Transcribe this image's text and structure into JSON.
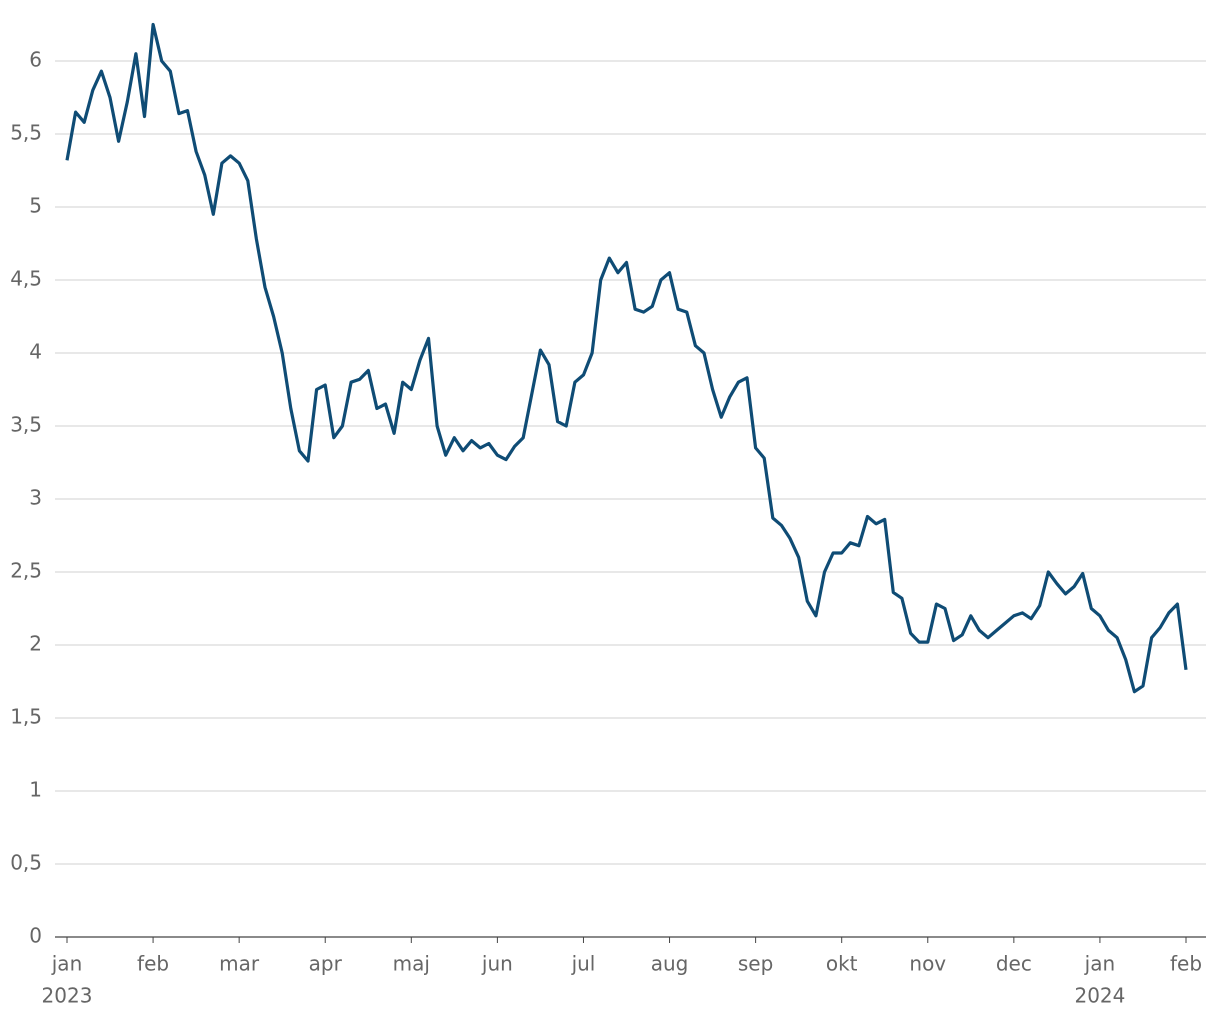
{
  "chart_data": {
    "type": "line",
    "categories": [
      "jan",
      null,
      null,
      null,
      null,
      null,
      null,
      null,
      null,
      null,
      "feb",
      null,
      null,
      null,
      null,
      null,
      null,
      null,
      null,
      null,
      "mar",
      null,
      null,
      null,
      null,
      null,
      null,
      null,
      null,
      null,
      "apr",
      null,
      null,
      null,
      null,
      null,
      null,
      null,
      null,
      null,
      "maj",
      null,
      null,
      null,
      null,
      null,
      null,
      null,
      null,
      null,
      "jun",
      null,
      null,
      null,
      null,
      null,
      null,
      null,
      null,
      null,
      "jul",
      null,
      null,
      null,
      null,
      null,
      null,
      null,
      null,
      null,
      "aug",
      null,
      null,
      null,
      null,
      null,
      null,
      null,
      null,
      null,
      "sep",
      null,
      null,
      null,
      null,
      null,
      null,
      null,
      null,
      null,
      "okt",
      null,
      null,
      null,
      null,
      null,
      null,
      null,
      null,
      null,
      "nov",
      null,
      null,
      null,
      null,
      null,
      null,
      null,
      null,
      null,
      "dec",
      null,
      null,
      null,
      null,
      null,
      null,
      null,
      null,
      null,
      "jan",
      null,
      null,
      null,
      null,
      null,
      null,
      null,
      null,
      null,
      "feb"
    ],
    "years": [
      "2023",
      "2024"
    ],
    "series": [
      {
        "color": "#0f4c75",
        "values": [
          5.32,
          5.65,
          5.58,
          5.8,
          5.93,
          5.75,
          5.45,
          5.72,
          6.05,
          5.62,
          6.25,
          6.0,
          5.93,
          5.64,
          5.66,
          5.38,
          5.22,
          4.95,
          5.3,
          5.35,
          5.3,
          5.18,
          4.78,
          4.45,
          4.25,
          4.0,
          3.62,
          3.33,
          3.26,
          3.75,
          3.78,
          3.42,
          3.5,
          3.8,
          3.82,
          3.88,
          3.62,
          3.65,
          3.45,
          3.8,
          3.75,
          3.95,
          4.1,
          3.5,
          3.3,
          3.42,
          3.33,
          3.4,
          3.35,
          3.38,
          3.3,
          3.27,
          3.36,
          3.42,
          3.72,
          4.02,
          3.92,
          3.53,
          3.5,
          3.8,
          3.85,
          4.0,
          4.5,
          4.65,
          4.55,
          4.62,
          4.3,
          4.28,
          4.32,
          4.5,
          4.55,
          4.3,
          4.28,
          4.05,
          4.0,
          3.75,
          3.56,
          3.7,
          3.8,
          3.83,
          3.35,
          3.28,
          2.87,
          2.82,
          2.73,
          2.6,
          2.3,
          2.2,
          2.5,
          2.63,
          2.63,
          2.7,
          2.68,
          2.88,
          2.83,
          2.86,
          2.36,
          2.32,
          2.08,
          2.02,
          2.02,
          2.28,
          2.25,
          2.03,
          2.07,
          2.2,
          2.1,
          2.05,
          2.1,
          2.15,
          2.2,
          2.22,
          2.18,
          2.27,
          2.5,
          2.42,
          2.35,
          2.4,
          2.49,
          2.25,
          2.2,
          2.1,
          2.05,
          1.9,
          1.68,
          1.72,
          2.05,
          2.12,
          2.22,
          2.28,
          1.83
        ]
      }
    ],
    "ylim": [
      0,
      6.25
    ],
    "yticks": [
      0,
      {
        "value": 0.5,
        "label": "0,5"
      },
      1,
      {
        "value": 1.5,
        "label": "1,5"
      },
      2,
      {
        "value": 2.5,
        "label": "2,5"
      },
      3,
      {
        "value": 3.5,
        "label": "3,5"
      },
      4,
      {
        "value": 4.5,
        "label": "4,5"
      },
      5,
      {
        "value": 5.5,
        "label": "5,5"
      },
      6
    ],
    "grid": true
  }
}
